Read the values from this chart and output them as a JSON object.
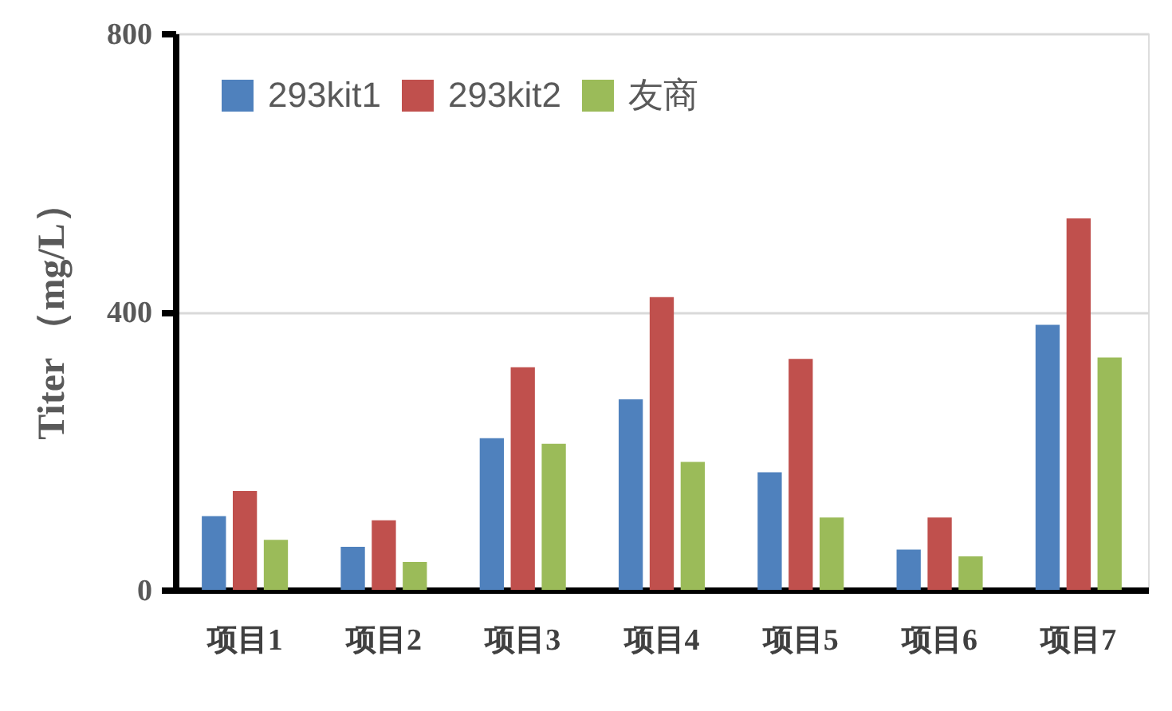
{
  "chart_data": {
    "type": "bar",
    "categories": [
      "项目1",
      "项目2",
      "项目3",
      "项目4",
      "项目5",
      "项目6",
      "项目7"
    ],
    "series": [
      {
        "name": "293kit1",
        "color": "#4f81bd",
        "values": [
          106,
          62,
          218,
          274,
          169,
          58,
          381
        ]
      },
      {
        "name": "293kit2",
        "color": "#c0504d",
        "values": [
          142,
          100,
          320,
          421,
          332,
          104,
          534
        ]
      },
      {
        "name": "友商",
        "color": "#9bbb59",
        "values": [
          72,
          40,
          210,
          184,
          104,
          48,
          334
        ]
      }
    ],
    "ylabel": "Titer （mg/L）",
    "ylim": [
      0,
      800
    ],
    "yticks": [
      0,
      400,
      800
    ],
    "grid": "y",
    "legend": "top left"
  }
}
